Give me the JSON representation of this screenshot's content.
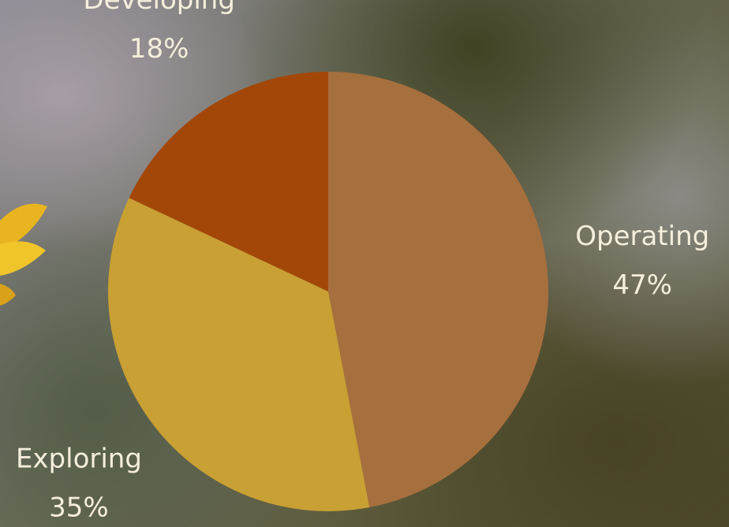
{
  "chart_data": {
    "type": "pie",
    "categories": [
      "Operating",
      "Exploring",
      "Developing"
    ],
    "values": [
      47,
      35,
      18
    ],
    "value_labels": [
      "47%",
      "35%",
      "18%"
    ],
    "colors": [
      "#a66f3e",
      "#c9a033",
      "#a34709"
    ]
  }
}
